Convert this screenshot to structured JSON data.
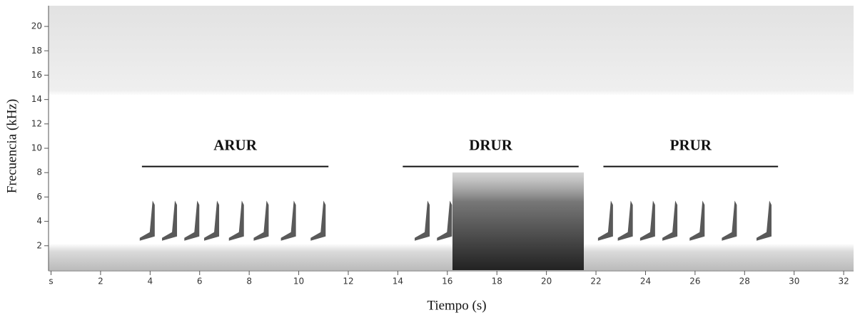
{
  "chart_data": {
    "type": "spectrogram",
    "x_label": "Tiempo (s)",
    "y_label": "Frecuencia (kHz)",
    "xlim": [
      0,
      32.4
    ],
    "ylim": [
      0,
      21.7
    ],
    "xticks": [
      {
        "value": 0,
        "label": "s"
      },
      2,
      4,
      6,
      8,
      10,
      12,
      14,
      16,
      18,
      20,
      22,
      24,
      26,
      28,
      30,
      32
    ],
    "yticks": [
      2,
      4,
      6,
      8,
      10,
      12,
      14,
      16,
      18,
      20
    ],
    "segments": [
      {
        "label": "ARUR",
        "start": 3.67,
        "end": 11.2,
        "freq": 8.5
      },
      {
        "label": "DRUR",
        "start": 14.2,
        "end": 21.3,
        "freq": 8.5
      },
      {
        "label": "PRUR",
        "start": 22.3,
        "end": 29.35,
        "freq": 8.5
      }
    ],
    "calls": [
      4.1,
      5.0,
      5.9,
      6.7,
      7.7,
      8.7,
      9.8,
      11.0,
      15.2,
      16.1,
      22.6,
      23.4,
      24.3,
      25.2,
      26.3,
      27.6,
      29.0
    ],
    "color": "#222222"
  }
}
